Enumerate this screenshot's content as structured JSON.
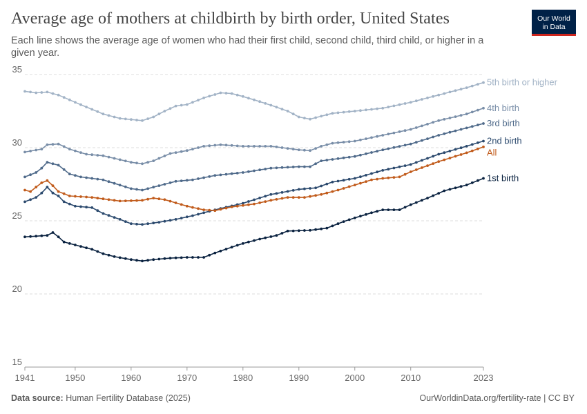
{
  "header": {
    "title": "Average age of mothers at childbirth by birth order, United States",
    "subtitle": "Each line shows the average age of women who had their first child, second child, third child, or higher in a given year."
  },
  "logo": {
    "line1": "Our World",
    "line2": "in Data"
  },
  "footer": {
    "source_label": "Data source:",
    "source_text": "Human Fertility Database (2025)",
    "url_text": "OurWorldinData.org/fertility-rate | CC BY"
  },
  "chart_data": {
    "type": "line",
    "title": "Average age of mothers at childbirth by birth order, United States",
    "xlim": [
      1941,
      2023
    ],
    "ylim": [
      15,
      35
    ],
    "x_ticks": [
      1941,
      1950,
      1960,
      1970,
      1980,
      1990,
      2000,
      2010,
      2023
    ],
    "y_ticks": [
      15,
      20,
      25,
      30,
      35
    ],
    "grid": "horizontal dashed",
    "legend": "right-end labels",
    "series": [
      {
        "name": "5th birth or higher",
        "color": "#a2b3c6",
        "keys": [
          [
            1941,
            33.85
          ],
          [
            1943,
            33.75
          ],
          [
            1945,
            33.8
          ],
          [
            1947,
            33.6
          ],
          [
            1950,
            33.1
          ],
          [
            1955,
            32.3
          ],
          [
            1958,
            32.0
          ],
          [
            1962,
            31.85
          ],
          [
            1964,
            32.1
          ],
          [
            1966,
            32.5
          ],
          [
            1968,
            32.85
          ],
          [
            1970,
            32.95
          ],
          [
            1973,
            33.4
          ],
          [
            1976,
            33.75
          ],
          [
            1978,
            33.7
          ],
          [
            1980,
            33.5
          ],
          [
            1983,
            33.15
          ],
          [
            1985,
            32.9
          ],
          [
            1988,
            32.5
          ],
          [
            1990,
            32.1
          ],
          [
            1992,
            31.95
          ],
          [
            1994,
            32.15
          ],
          [
            1996,
            32.35
          ],
          [
            2000,
            32.5
          ],
          [
            2005,
            32.7
          ],
          [
            2010,
            33.1
          ],
          [
            2015,
            33.6
          ],
          [
            2020,
            34.1
          ],
          [
            2023,
            34.45
          ]
        ]
      },
      {
        "name": "4th birth",
        "color": "#798ea8",
        "keys": [
          [
            1941,
            29.7
          ],
          [
            1944,
            29.9
          ],
          [
            1945,
            30.2
          ],
          [
            1947,
            30.25
          ],
          [
            1949,
            29.9
          ],
          [
            1952,
            29.55
          ],
          [
            1955,
            29.45
          ],
          [
            1960,
            29.0
          ],
          [
            1962,
            28.9
          ],
          [
            1964,
            29.1
          ],
          [
            1967,
            29.6
          ],
          [
            1970,
            29.8
          ],
          [
            1973,
            30.1
          ],
          [
            1976,
            30.2
          ],
          [
            1978,
            30.15
          ],
          [
            1980,
            30.1
          ],
          [
            1985,
            30.1
          ],
          [
            1990,
            29.85
          ],
          [
            1992,
            29.8
          ],
          [
            1994,
            30.1
          ],
          [
            1996,
            30.3
          ],
          [
            2000,
            30.45
          ],
          [
            2005,
            30.85
          ],
          [
            2010,
            31.25
          ],
          [
            2015,
            31.85
          ],
          [
            2020,
            32.3
          ],
          [
            2023,
            32.7
          ]
        ]
      },
      {
        "name": "3rd birth",
        "color": "#4f6a8a",
        "keys": [
          [
            1941,
            28.0
          ],
          [
            1943,
            28.3
          ],
          [
            1944,
            28.6
          ],
          [
            1945,
            29.0
          ],
          [
            1947,
            28.8
          ],
          [
            1949,
            28.2
          ],
          [
            1951,
            28.0
          ],
          [
            1955,
            27.8
          ],
          [
            1960,
            27.2
          ],
          [
            1962,
            27.1
          ],
          [
            1965,
            27.4
          ],
          [
            1968,
            27.7
          ],
          [
            1971,
            27.8
          ],
          [
            1975,
            28.1
          ],
          [
            1980,
            28.3
          ],
          [
            1985,
            28.6
          ],
          [
            1990,
            28.7
          ],
          [
            1992,
            28.7
          ],
          [
            1994,
            29.1
          ],
          [
            2000,
            29.4
          ],
          [
            2005,
            29.85
          ],
          [
            2010,
            30.25
          ],
          [
            2015,
            30.85
          ],
          [
            2020,
            31.35
          ],
          [
            2023,
            31.65
          ]
        ]
      },
      {
        "name": "2nd birth",
        "color": "#2c4a6e",
        "keys": [
          [
            1941,
            26.3
          ],
          [
            1943,
            26.6
          ],
          [
            1944,
            26.9
          ],
          [
            1945,
            27.3
          ],
          [
            1946,
            26.9
          ],
          [
            1947,
            26.7
          ],
          [
            1948,
            26.3
          ],
          [
            1950,
            26.0
          ],
          [
            1953,
            25.9
          ],
          [
            1955,
            25.5
          ],
          [
            1958,
            25.1
          ],
          [
            1960,
            24.8
          ],
          [
            1962,
            24.75
          ],
          [
            1965,
            24.9
          ],
          [
            1968,
            25.1
          ],
          [
            1971,
            25.35
          ],
          [
            1975,
            25.75
          ],
          [
            1980,
            26.2
          ],
          [
            1985,
            26.8
          ],
          [
            1990,
            27.15
          ],
          [
            1993,
            27.25
          ],
          [
            1996,
            27.65
          ],
          [
            2000,
            27.9
          ],
          [
            2005,
            28.45
          ],
          [
            2010,
            28.85
          ],
          [
            2015,
            29.55
          ],
          [
            2020,
            30.1
          ],
          [
            2023,
            30.45
          ]
        ]
      },
      {
        "name": "All",
        "color": "#c15b1b",
        "keys": [
          [
            1941,
            27.1
          ],
          [
            1942,
            27.0
          ],
          [
            1943,
            27.3
          ],
          [
            1944,
            27.6
          ],
          [
            1945,
            27.75
          ],
          [
            1946,
            27.4
          ],
          [
            1947,
            27.0
          ],
          [
            1949,
            26.7
          ],
          [
            1953,
            26.6
          ],
          [
            1955,
            26.5
          ],
          [
            1958,
            26.35
          ],
          [
            1962,
            26.4
          ],
          [
            1964,
            26.55
          ],
          [
            1966,
            26.45
          ],
          [
            1970,
            26.0
          ],
          [
            1973,
            25.75
          ],
          [
            1975,
            25.7
          ],
          [
            1978,
            25.95
          ],
          [
            1982,
            26.15
          ],
          [
            1985,
            26.4
          ],
          [
            1988,
            26.6
          ],
          [
            1991,
            26.6
          ],
          [
            1994,
            26.8
          ],
          [
            1997,
            27.1
          ],
          [
            2000,
            27.45
          ],
          [
            2003,
            27.8
          ],
          [
            2005,
            27.9
          ],
          [
            2008,
            28.0
          ],
          [
            2010,
            28.35
          ],
          [
            2015,
            29.05
          ],
          [
            2020,
            29.65
          ],
          [
            2023,
            30.05
          ]
        ]
      },
      {
        "name": "1st birth",
        "color": "#0a2240",
        "keys": [
          [
            1941,
            23.9
          ],
          [
            1943,
            23.95
          ],
          [
            1945,
            24.0
          ],
          [
            1946,
            24.2
          ],
          [
            1947,
            23.9
          ],
          [
            1948,
            23.55
          ],
          [
            1950,
            23.35
          ],
          [
            1953,
            23.05
          ],
          [
            1955,
            22.75
          ],
          [
            1957,
            22.55
          ],
          [
            1960,
            22.35
          ],
          [
            1962,
            22.25
          ],
          [
            1964,
            22.35
          ],
          [
            1967,
            22.45
          ],
          [
            1970,
            22.5
          ],
          [
            1973,
            22.5
          ],
          [
            1975,
            22.8
          ],
          [
            1978,
            23.2
          ],
          [
            1980,
            23.45
          ],
          [
            1983,
            23.75
          ],
          [
            1986,
            24.0
          ],
          [
            1988,
            24.3
          ],
          [
            1992,
            24.35
          ],
          [
            1995,
            24.5
          ],
          [
            1998,
            24.95
          ],
          [
            2000,
            25.2
          ],
          [
            2003,
            25.55
          ],
          [
            2005,
            25.75
          ],
          [
            2008,
            25.75
          ],
          [
            2010,
            26.1
          ],
          [
            2013,
            26.55
          ],
          [
            2016,
            27.05
          ],
          [
            2020,
            27.45
          ],
          [
            2023,
            27.9
          ]
        ]
      }
    ]
  }
}
